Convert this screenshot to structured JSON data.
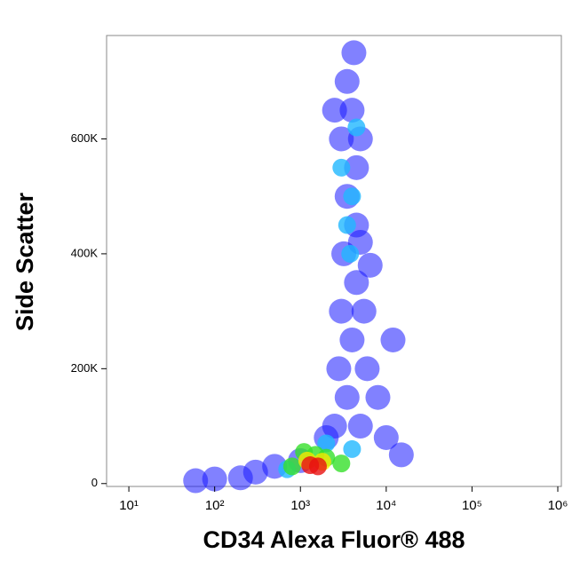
{
  "chart_data": {
    "type": "scatter",
    "x_label": "CD34 Alexa Fluor® 488",
    "y_label": "Side Scatter",
    "xscale": "log",
    "xlim": [
      5.5,
      1100000
    ],
    "xticks": [
      {
        "value": 10,
        "label": "10¹"
      },
      {
        "value": 100,
        "label": "10²"
      },
      {
        "value": 1000,
        "label": "10³"
      },
      {
        "value": 10000,
        "label": "10⁴"
      },
      {
        "value": 100000,
        "label": "10⁵"
      },
      {
        "value": 1000000,
        "label": "10⁶"
      }
    ],
    "ylim": [
      -5000,
      780000
    ],
    "yticks": [
      0,
      {
        "value": 200000,
        "label": "200K"
      },
      {
        "value": 400000,
        "label": "400K"
      },
      {
        "value": 600000,
        "label": "600K"
      }
    ],
    "series": [
      {
        "color": "#1a1aff",
        "x": [
          2500,
          3500,
          2800,
          4000,
          3000,
          4500,
          3200,
          5000,
          3500,
          4500,
          3000,
          4000,
          3500,
          4200,
          5500,
          6000,
          8000,
          2000,
          1000,
          500,
          300,
          200,
          5000,
          10000,
          15000,
          2500,
          5000,
          4500,
          6500,
          12000,
          100,
          60
        ],
        "values": [
          100000,
          150000,
          200000,
          250000,
          300000,
          350000,
          400000,
          420000,
          500000,
          550000,
          600000,
          650000,
          700000,
          750000,
          300000,
          200000,
          150000,
          80000,
          40000,
          30000,
          20000,
          10000,
          100000,
          80000,
          50000,
          650000,
          600000,
          450000,
          380000,
          250000,
          8000,
          5000
        ]
      },
      {
        "color": "#20b8ff",
        "x": [
          3500,
          4000,
          3800,
          3000,
          2000,
          4000,
          700,
          4500
        ],
        "values": [
          450000,
          500000,
          400000,
          550000,
          70000,
          60000,
          25000,
          620000
        ]
      },
      {
        "color": "#36e02a",
        "x": [
          1500,
          2000,
          800,
          3000,
          1100
        ],
        "values": [
          50000,
          45000,
          30000,
          35000,
          55000
        ]
      },
      {
        "color": "#f5e800",
        "x": [
          1200,
          1800
        ],
        "values": [
          40000,
          38000
        ]
      },
      {
        "color": "#e81010",
        "x": [
          1300,
          1600
        ],
        "values": [
          32000,
          30000
        ]
      }
    ]
  }
}
